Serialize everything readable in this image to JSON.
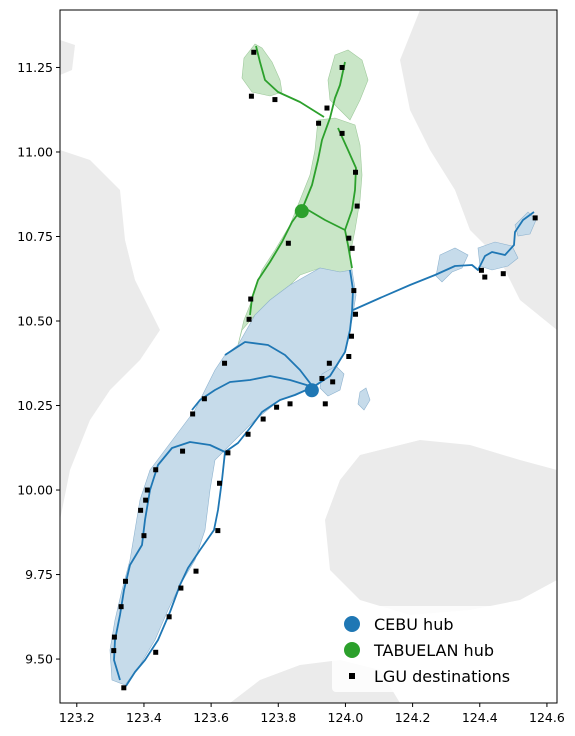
{
  "chart_data": {
    "type": "map",
    "title": "",
    "xlabel": "",
    "ylabel": "",
    "xlim": [
      123.15,
      124.63
    ],
    "ylim": [
      9.37,
      11.42
    ],
    "x_ticks": [
      "123.2",
      "123.4",
      "123.6",
      "123.8",
      "124.0",
      "124.2",
      "124.4",
      "124.6"
    ],
    "y_ticks": [
      "9.50",
      "9.75",
      "10.00",
      "10.25",
      "10.50",
      "10.75",
      "11.00",
      "11.25"
    ],
    "grid": false,
    "legend_position": "lower-right",
    "colors": {
      "cebu": "#1f77b4",
      "cebu_fill": "#c6dbea",
      "tabuelan": "#2ca02c",
      "tabuelan_fill": "#c9e6c7",
      "land": "#ebebeb",
      "lgu": "#000000"
    },
    "hubs": [
      {
        "name": "CEBU hub",
        "lon": 123.9,
        "lat": 10.295
      },
      {
        "name": "TABUELAN hub",
        "lon": 123.87,
        "lat": 10.825
      }
    ],
    "lgu_destinations": [
      [
        123.727,
        11.295
      ],
      [
        123.72,
        11.165
      ],
      [
        123.79,
        11.155
      ],
      [
        123.99,
        11.25
      ],
      [
        123.945,
        11.13
      ],
      [
        123.92,
        11.085
      ],
      [
        123.99,
        11.055
      ],
      [
        124.03,
        10.94
      ],
      [
        124.035,
        10.84
      ],
      [
        124.01,
        10.745
      ],
      [
        124.02,
        10.715
      ],
      [
        123.83,
        10.73
      ],
      [
        123.718,
        10.565
      ],
      [
        123.713,
        10.505
      ],
      [
        124.025,
        10.59
      ],
      [
        124.03,
        10.52
      ],
      [
        124.018,
        10.455
      ],
      [
        124.01,
        10.395
      ],
      [
        123.952,
        10.375
      ],
      [
        123.93,
        10.33
      ],
      [
        123.962,
        10.32
      ],
      [
        123.94,
        10.255
      ],
      [
        123.64,
        10.375
      ],
      [
        123.58,
        10.27
      ],
      [
        123.545,
        10.225
      ],
      [
        123.835,
        10.255
      ],
      [
        123.795,
        10.245
      ],
      [
        123.755,
        10.21
      ],
      [
        123.71,
        10.165
      ],
      [
        123.65,
        10.11
      ],
      [
        123.515,
        10.115
      ],
      [
        123.435,
        10.06
      ],
      [
        123.41,
        10.0
      ],
      [
        123.405,
        9.97
      ],
      [
        123.39,
        9.94
      ],
      [
        123.4,
        9.865
      ],
      [
        123.625,
        10.02
      ],
      [
        123.62,
        9.88
      ],
      [
        123.555,
        9.76
      ],
      [
        123.51,
        9.71
      ],
      [
        123.475,
        9.625
      ],
      [
        123.435,
        9.52
      ],
      [
        123.345,
        9.73
      ],
      [
        123.332,
        9.655
      ],
      [
        123.312,
        9.565
      ],
      [
        123.31,
        9.525
      ],
      [
        123.34,
        9.415
      ],
      [
        124.405,
        10.65
      ],
      [
        124.415,
        10.63
      ],
      [
        124.47,
        10.64
      ],
      [
        124.565,
        10.805
      ]
    ],
    "legend": [
      "CEBU hub",
      "TABUELAN hub",
      "LGU destinations"
    ]
  }
}
